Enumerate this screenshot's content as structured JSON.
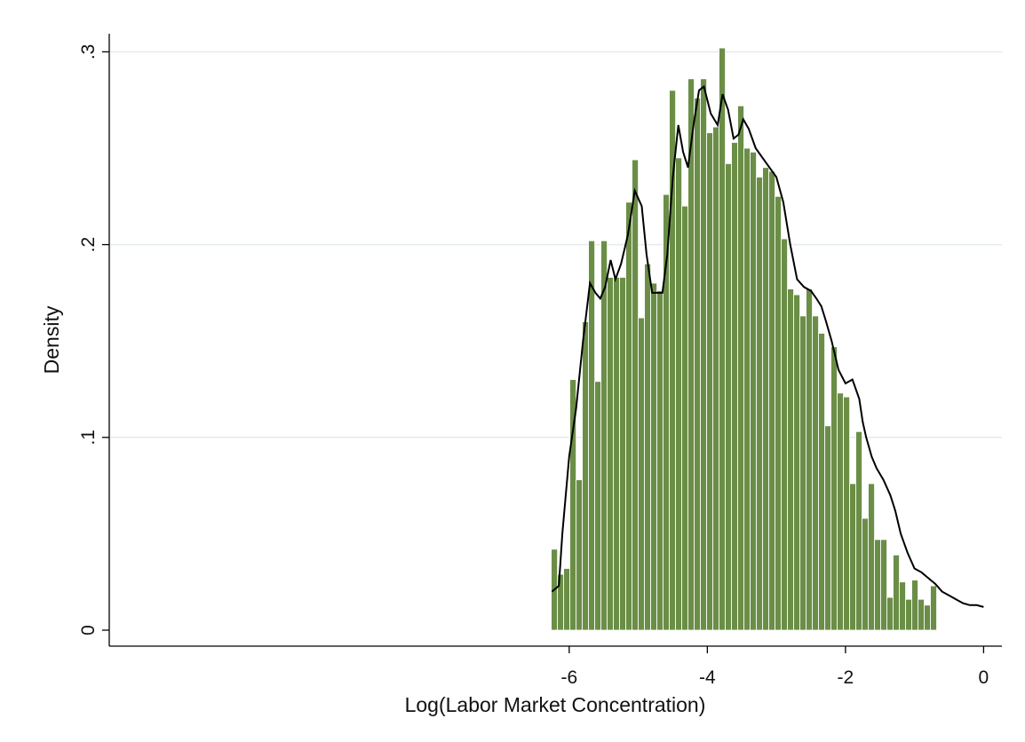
{
  "chart_data": {
    "type": "bar",
    "subtype": "histogram-with-kernel-density",
    "xlabel": "Log(Labor Market Concentration)",
    "ylabel": "Density",
    "xlim": [
      -6.3,
      0.2
    ],
    "ylim": [
      0,
      0.31
    ],
    "x_ticks": [
      -6,
      -4,
      -2,
      0
    ],
    "x_tick_labels": [
      "-6",
      "-4",
      "-2",
      "0"
    ],
    "y_ticks": [
      0,
      0.1,
      0.2,
      0.3
    ],
    "y_tick_labels": [
      "0",
      ".1",
      ".2",
      ".3"
    ],
    "grid": "horizontal",
    "legend": "none",
    "bin_start": -6.26,
    "bin_width": 0.09,
    "series": [
      {
        "type": "histogram",
        "values": [
          0.042,
          0.029,
          0.032,
          0.13,
          0.078,
          0.16,
          0.202,
          0.129,
          0.202,
          0.183,
          0.183,
          0.183,
          0.222,
          0.244,
          0.162,
          0.19,
          0.18,
          0.176,
          0.226,
          0.28,
          0.245,
          0.22,
          0.286,
          0.276,
          0.286,
          0.258,
          0.261,
          0.302,
          0.242,
          0.253,
          0.272,
          0.25,
          0.248,
          0.235,
          0.24,
          0.238,
          0.225,
          0.203,
          0.177,
          0.174,
          0.163,
          0.177,
          0.163,
          0.154,
          0.106,
          0.147,
          0.123,
          0.121,
          0.076,
          0.103,
          0.058,
          0.076,
          0.047,
          0.047,
          0.017,
          0.039,
          0.025,
          0.016,
          0.026,
          0.016,
          0.013,
          0.023
        ],
        "color": "#6b8e47"
      },
      {
        "type": "line",
        "color": "#000000",
        "x": [
          -6.25,
          -6.15,
          -6.1,
          -6.0,
          -5.9,
          -5.8,
          -5.7,
          -5.62,
          -5.55,
          -5.48,
          -5.4,
          -5.33,
          -5.25,
          -5.15,
          -5.05,
          -4.95,
          -4.88,
          -4.8,
          -4.72,
          -4.65,
          -4.58,
          -4.5,
          -4.42,
          -4.35,
          -4.28,
          -4.2,
          -4.12,
          -4.05,
          -3.95,
          -3.85,
          -3.78,
          -3.7,
          -3.62,
          -3.55,
          -3.48,
          -3.4,
          -3.3,
          -3.2,
          -3.1,
          -3.0,
          -2.9,
          -2.8,
          -2.7,
          -2.6,
          -2.5,
          -2.42,
          -2.35,
          -2.28,
          -2.2,
          -2.1,
          -2.0,
          -1.9,
          -1.8,
          -1.75,
          -1.7,
          -1.62,
          -1.55,
          -1.45,
          -1.35,
          -1.28,
          -1.2,
          -1.1,
          -1.0,
          -0.9,
          -0.8,
          -0.7,
          -0.6,
          -0.5,
          -0.4,
          -0.3,
          -0.2,
          -0.1,
          0.0
        ],
        "y": [
          0.02,
          0.023,
          0.05,
          0.09,
          0.115,
          0.15,
          0.18,
          0.175,
          0.172,
          0.178,
          0.192,
          0.182,
          0.19,
          0.205,
          0.228,
          0.22,
          0.195,
          0.175,
          0.175,
          0.175,
          0.195,
          0.235,
          0.262,
          0.248,
          0.24,
          0.262,
          0.28,
          0.282,
          0.268,
          0.262,
          0.278,
          0.27,
          0.255,
          0.257,
          0.265,
          0.26,
          0.25,
          0.245,
          0.24,
          0.235,
          0.222,
          0.2,
          0.182,
          0.178,
          0.176,
          0.172,
          0.168,
          0.16,
          0.15,
          0.135,
          0.128,
          0.13,
          0.12,
          0.108,
          0.1,
          0.09,
          0.084,
          0.078,
          0.07,
          0.062,
          0.05,
          0.04,
          0.032,
          0.03,
          0.027,
          0.024,
          0.02,
          0.018,
          0.016,
          0.014,
          0.013,
          0.013,
          0.012
        ]
      }
    ]
  }
}
